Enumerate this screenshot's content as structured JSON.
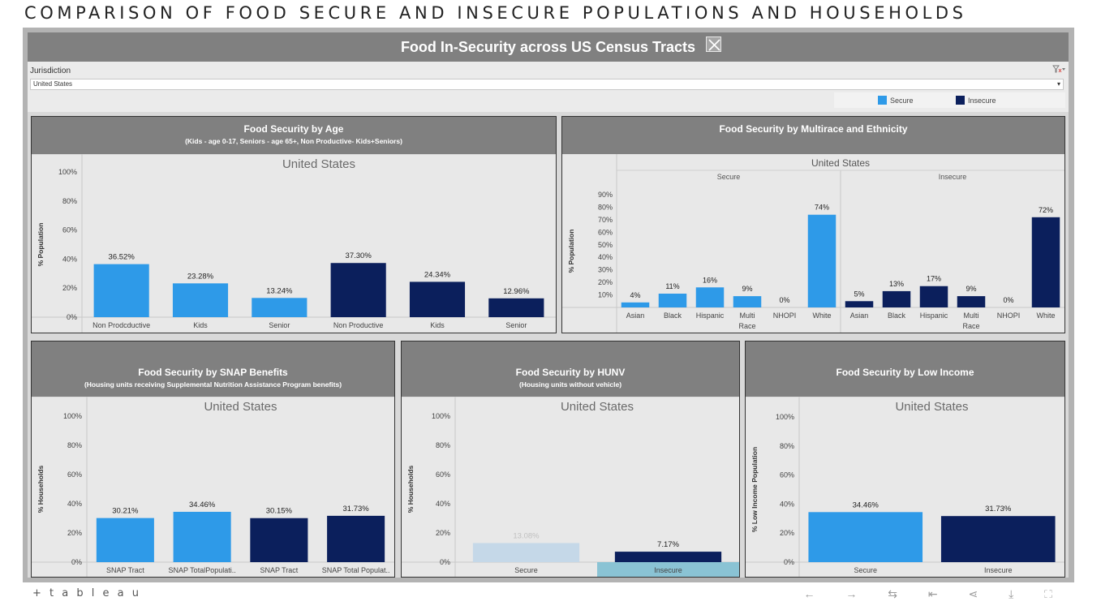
{
  "page_title": "COMPARISON OF FOOD SECURE AND INSECURE POPULATIONS AND HOUSEHOLDS",
  "dashboard": {
    "title": "Food In-Security across US Census Tracts",
    "close_icon": "close-icon",
    "filter": {
      "label": "Jurisdiction",
      "value": "United States",
      "clear_icon": "clear-filter-icon",
      "caret": "▾"
    },
    "legend": [
      {
        "label": "Secure",
        "color": "#2e9ae8"
      },
      {
        "label": "Insecure",
        "color": "#0b1f5c"
      }
    ]
  },
  "colors": {
    "secure": "#2e9ae8",
    "insecure": "#0b1f5c",
    "faded": "#c5d8e8",
    "highlight": "#8ac3d4"
  },
  "chart_data": [
    {
      "id": "age",
      "type": "bar",
      "title": "Food Security by Age",
      "subtitle": "(Kids - age 0-17,  Seniors - age 65+,  Non Productive- Kids+Seniors)",
      "header": "United States",
      "ylabel": "% Population",
      "ylim": [
        0,
        100
      ],
      "yticks": [
        "0%",
        "20%",
        "40%",
        "60%",
        "80%",
        "100%"
      ],
      "categories": [
        "Non Prodcductive",
        "Kids",
        "Senior",
        "Non Productive",
        "Kids",
        "Senior"
      ],
      "values": [
        36.52,
        23.28,
        13.24,
        37.3,
        24.34,
        12.96
      ],
      "labels": [
        "36.52%",
        "23.28%",
        "13.24%",
        "37.30%",
        "24.34%",
        "12.96%"
      ],
      "groups": [
        "secure",
        "secure",
        "secure",
        "insecure",
        "insecure",
        "insecure"
      ]
    },
    {
      "id": "race",
      "type": "bar",
      "title": "Food Security by Multirace and Ethnicity",
      "subtitle": "",
      "header": "United States",
      "panes": [
        "Secure",
        "Insecure"
      ],
      "ylabel": "% Population",
      "ylim": [
        0,
        90
      ],
      "yticks": [
        "10%",
        "20%",
        "30%",
        "40%",
        "50%",
        "60%",
        "70%",
        "80%",
        "90%"
      ],
      "categories": [
        "Asian",
        "Black",
        "Hispanic",
        "Multi Race",
        "NHOPI",
        "White"
      ],
      "series": [
        {
          "name": "Secure",
          "values": [
            4,
            11,
            16,
            9,
            0,
            74
          ],
          "labels": [
            "4%",
            "11%",
            "16%",
            "9%",
            "0%",
            "74%"
          ]
        },
        {
          "name": "Insecure",
          "values": [
            5,
            13,
            17,
            9,
            0,
            72
          ],
          "labels": [
            "5%",
            "13%",
            "17%",
            "9%",
            "0%",
            "72%"
          ]
        }
      ]
    },
    {
      "id": "snap",
      "type": "bar",
      "title": "Food Security by SNAP Benefits",
      "subtitle": "(Housing units receiving Supplemental Nutrition Assistance Program benefits)",
      "header": "United States",
      "ylabel": "% Households",
      "ylim": [
        0,
        100
      ],
      "yticks": [
        "0%",
        "20%",
        "40%",
        "60%",
        "80%",
        "100%"
      ],
      "categories": [
        "SNAP Tract",
        "SNAP TotalPopulati..",
        "SNAP Tract",
        "SNAP Total Populat.."
      ],
      "values": [
        30.21,
        34.46,
        30.15,
        31.73
      ],
      "labels": [
        "30.21%",
        "34.46%",
        "30.15%",
        "31.73%"
      ],
      "groups": [
        "secure",
        "secure",
        "insecure",
        "insecure"
      ]
    },
    {
      "id": "hunv",
      "type": "bar",
      "title": "Food Security by HUNV",
      "subtitle": "(Housing units without vehicle)",
      "header": "United States",
      "ylabel": "% Households",
      "ylim": [
        0,
        100
      ],
      "yticks": [
        "0%",
        "20%",
        "40%",
        "60%",
        "80%",
        "100%"
      ],
      "categories": [
        "Secure",
        "Insecure"
      ],
      "values": [
        13.08,
        7.17
      ],
      "labels": [
        "13.08%",
        "7.17%"
      ],
      "groups": [
        "faded",
        "insecure"
      ],
      "selected_category": "Insecure"
    },
    {
      "id": "income",
      "type": "bar",
      "title": "Food Security by Low Income",
      "subtitle": "",
      "header": "United States",
      "ylabel": "% Low Income Population",
      "ylim": [
        0,
        100
      ],
      "yticks": [
        "0%",
        "20%",
        "40%",
        "60%",
        "80%",
        "100%"
      ],
      "categories": [
        "Secure",
        "Insecure"
      ],
      "values": [
        34.46,
        31.73
      ],
      "labels": [
        "34.46%",
        "31.73%"
      ],
      "groups": [
        "secure",
        "insecure"
      ]
    }
  ],
  "footer": {
    "logo": "+ t a b l e a u",
    "nav_icons": [
      "undo-icon",
      "redo-icon",
      "revert-icon",
      "first-icon",
      "share-icon",
      "download-icon",
      "fullscreen-icon"
    ],
    "nav_glyphs": "← → ⇆ ⇤ ⋖ ⤓ ⛶"
  }
}
